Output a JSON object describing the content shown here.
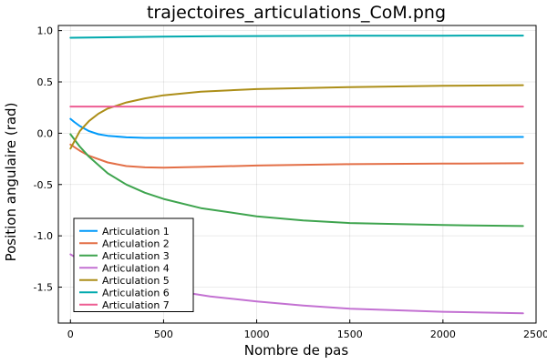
{
  "chart_data": {
    "type": "line",
    "title": "trajectoires_articulations_CoM.png",
    "xlabel": "Nombre de pas",
    "ylabel": "Position angulaire (rad)",
    "xlim": [
      -65,
      2500
    ],
    "ylim": [
      -1.85,
      1.05
    ],
    "xticks": [
      0,
      500,
      1000,
      1500,
      2000,
      2500
    ],
    "yticks": [
      -1.5,
      -1.0,
      -0.5,
      0.0,
      0.5,
      1.0
    ],
    "xtick_labels": [
      "0",
      "500",
      "1000",
      "1500",
      "2000",
      "2500"
    ],
    "ytick_labels": [
      "-1.5",
      "-1.0",
      "-0.5",
      "0.0",
      "0.5",
      "1.0"
    ],
    "grid": true,
    "legend_position": "bottom-left",
    "series": [
      {
        "name": "Articulation 1",
        "color": "#009AFA",
        "x": [
          0,
          20,
          50,
          100,
          150,
          200,
          300,
          400,
          500,
          700,
          1000,
          1500,
          2000,
          2430
        ],
        "y": [
          0.14,
          0.11,
          0.07,
          0.02,
          -0.01,
          -0.025,
          -0.04,
          -0.045,
          -0.045,
          -0.044,
          -0.042,
          -0.039,
          -0.037,
          -0.036
        ]
      },
      {
        "name": "Articulation 2",
        "color": "#E36F47",
        "x": [
          0,
          50,
          100,
          200,
          300,
          400,
          500,
          700,
          1000,
          1500,
          2000,
          2430
        ],
        "y": [
          -0.11,
          -0.17,
          -0.22,
          -0.285,
          -0.32,
          -0.333,
          -0.335,
          -0.328,
          -0.315,
          -0.302,
          -0.296,
          -0.293
        ]
      },
      {
        "name": "Articulation 3",
        "color": "#3EA44E",
        "x": [
          0,
          50,
          100,
          200,
          300,
          400,
          500,
          700,
          1000,
          1250,
          1500,
          2000,
          2430
        ],
        "y": [
          -0.01,
          -0.13,
          -0.23,
          -0.39,
          -0.5,
          -0.58,
          -0.64,
          -0.73,
          -0.81,
          -0.85,
          -0.875,
          -0.895,
          -0.905
        ]
      },
      {
        "name": "Articulation 4",
        "color": "#C371D2",
        "x": [
          0,
          100,
          200,
          300,
          500,
          750,
          1000,
          1250,
          1500,
          2000,
          2430
        ],
        "y": [
          -1.18,
          -1.29,
          -1.37,
          -1.43,
          -1.52,
          -1.59,
          -1.64,
          -1.68,
          -1.71,
          -1.74,
          -1.755
        ]
      },
      {
        "name": "Articulation 5",
        "color": "#AC8E18",
        "x": [
          0,
          50,
          100,
          150,
          200,
          300,
          400,
          500,
          700,
          1000,
          1500,
          2000,
          2430
        ],
        "y": [
          -0.15,
          0.02,
          0.12,
          0.19,
          0.24,
          0.3,
          0.34,
          0.37,
          0.405,
          0.43,
          0.45,
          0.462,
          0.468
        ]
      },
      {
        "name": "Articulation 6",
        "color": "#00A9AD",
        "x": [
          0,
          100,
          300,
          500,
          800,
          1000,
          1500,
          2000,
          2430
        ],
        "y": [
          0.93,
          0.932,
          0.937,
          0.941,
          0.945,
          0.947,
          0.95,
          0.951,
          0.952
        ]
      },
      {
        "name": "Articulation 7",
        "color": "#ED5D92",
        "x": [
          0,
          500,
          1000,
          1500,
          2000,
          2430
        ],
        "y": [
          0.26,
          0.26,
          0.26,
          0.26,
          0.26,
          0.26
        ]
      }
    ]
  }
}
